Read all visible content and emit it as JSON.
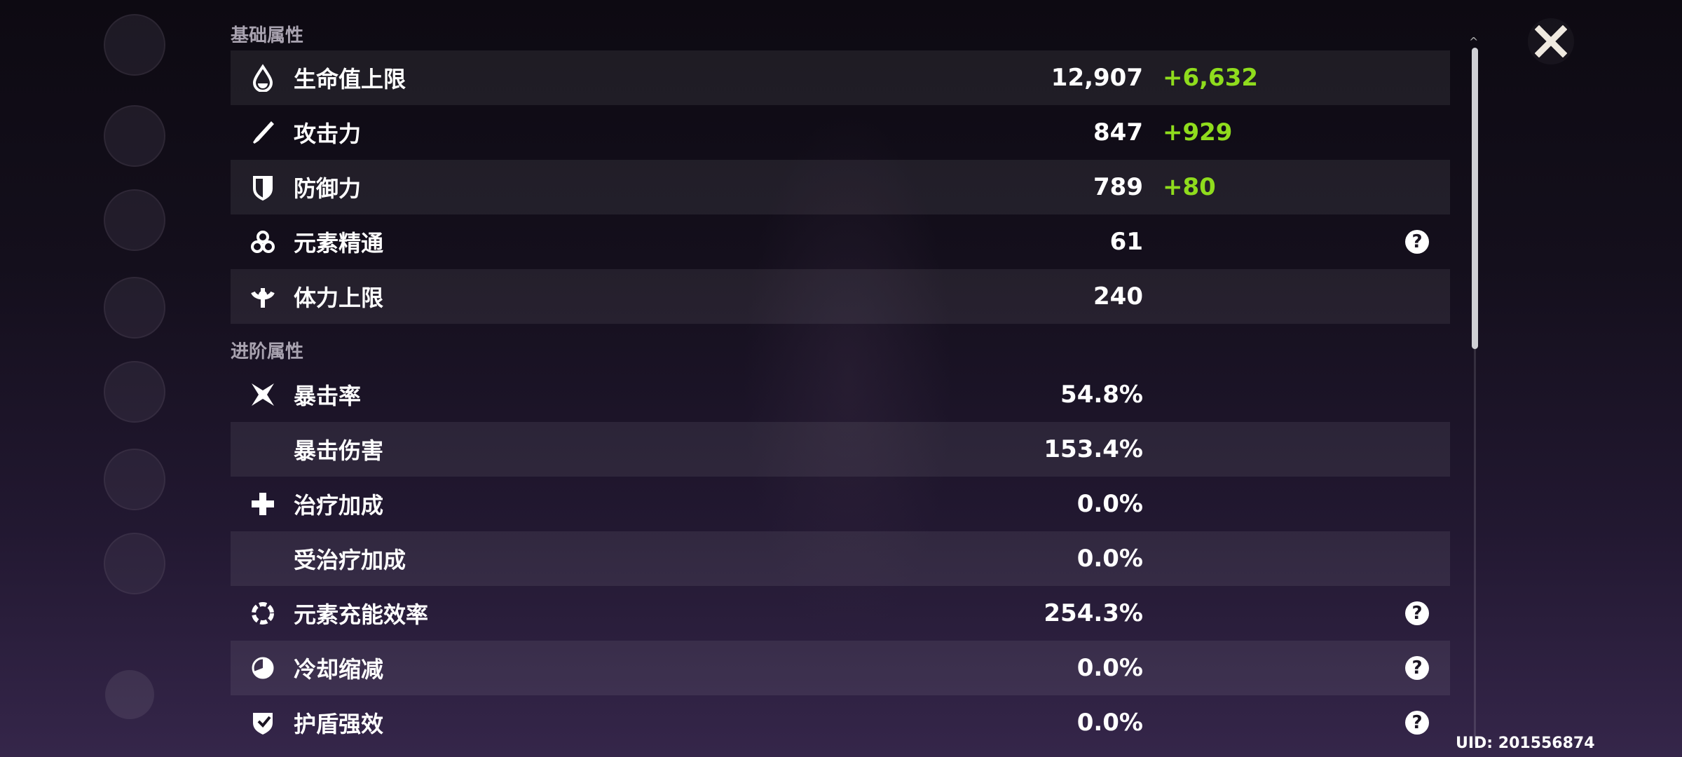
{
  "sections": {
    "basic": {
      "title": "基础属性",
      "rows": [
        {
          "icon": "hp-drop-icon",
          "label": "生命值上限",
          "value": "12,907",
          "bonus": "+6,632",
          "help": false
        },
        {
          "icon": "atk-sword-icon",
          "label": "攻击力",
          "value": "847",
          "bonus": "+929",
          "help": false
        },
        {
          "icon": "def-shield-icon",
          "label": "防御力",
          "value": "789",
          "bonus": "+80",
          "help": false
        },
        {
          "icon": "elemental-mastery-icon",
          "label": "元素精通",
          "value": "61",
          "bonus": "",
          "help": true
        },
        {
          "icon": "stamina-icon",
          "label": "体力上限",
          "value": "240",
          "bonus": "",
          "help": false
        }
      ]
    },
    "advanced": {
      "title": "进阶属性",
      "rows": [
        {
          "icon": "crit-star-icon",
          "label": "暴击率",
          "value": "54.8%",
          "help": false
        },
        {
          "icon": "",
          "label": "暴击伤害",
          "value": "153.4%",
          "help": false
        },
        {
          "icon": "healing-cross-icon",
          "label": "治疗加成",
          "value": "0.0%",
          "help": false
        },
        {
          "icon": "",
          "label": "受治疗加成",
          "value": "0.0%",
          "help": false
        },
        {
          "icon": "energy-recharge-icon",
          "label": "元素充能效率",
          "value": "254.3%",
          "help": true
        },
        {
          "icon": "cd-reduction-icon",
          "label": "冷却缩减",
          "value": "0.0%",
          "help": true
        },
        {
          "icon": "shield-strength-icon",
          "label": "护盾强效",
          "value": "0.0%",
          "help": true
        }
      ]
    }
  },
  "help_glyph": "?",
  "uid": "UID: 201556874",
  "colors": {
    "bonus": "#8fdc1d",
    "text": "#ffffff",
    "section": "#a9a3b0"
  }
}
